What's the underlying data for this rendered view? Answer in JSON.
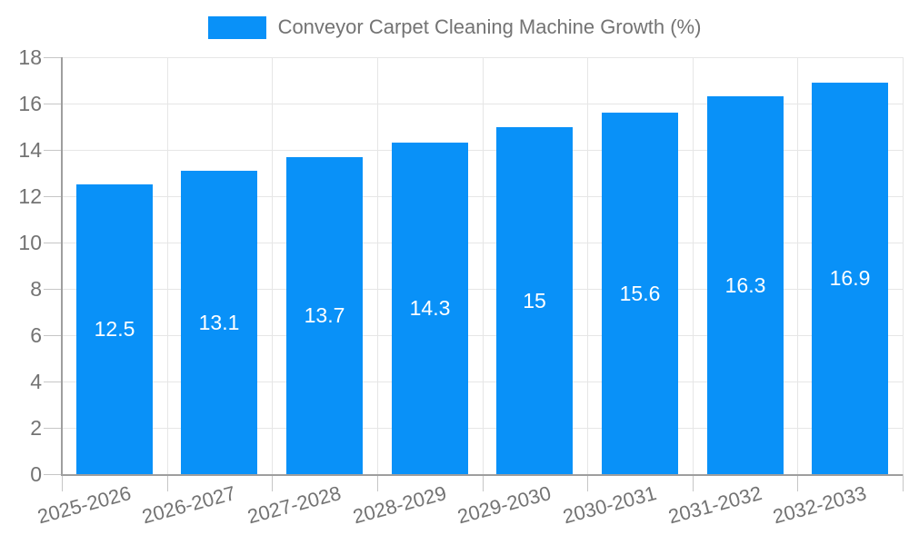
{
  "legend": {
    "label": "Conveyor Carpet Cleaning Machine Growth (%)"
  },
  "chart_data": {
    "type": "bar",
    "title": "",
    "xlabel": "",
    "ylabel": "",
    "categories": [
      "2025-2026",
      "2026-2027",
      "2027-2028",
      "2028-2029",
      "2029-2030",
      "2030-2031",
      "2031-2032",
      "2032-2033"
    ],
    "series": [
      {
        "name": "Conveyor Carpet Cleaning Machine Growth (%)",
        "values": [
          12.5,
          13.1,
          13.7,
          14.3,
          15,
          15.6,
          16.3,
          16.9
        ],
        "value_labels": [
          "12.5",
          "13.1",
          "13.7",
          "14.3",
          "15",
          "15.6",
          "16.3",
          "16.9"
        ]
      }
    ],
    "ylim": [
      0,
      18
    ],
    "yticks": [
      0,
      2,
      4,
      6,
      8,
      10,
      12,
      14,
      16,
      18
    ],
    "grid": true,
    "legend_position": "top-center"
  },
  "colors": {
    "bar": "#0991F8",
    "grid": "#e6e6e6",
    "axis": "#9e9e9e",
    "tick": "#c6c6c6",
    "text": "#737373",
    "value_label": "#ffffff",
    "background": "#ffffff"
  }
}
